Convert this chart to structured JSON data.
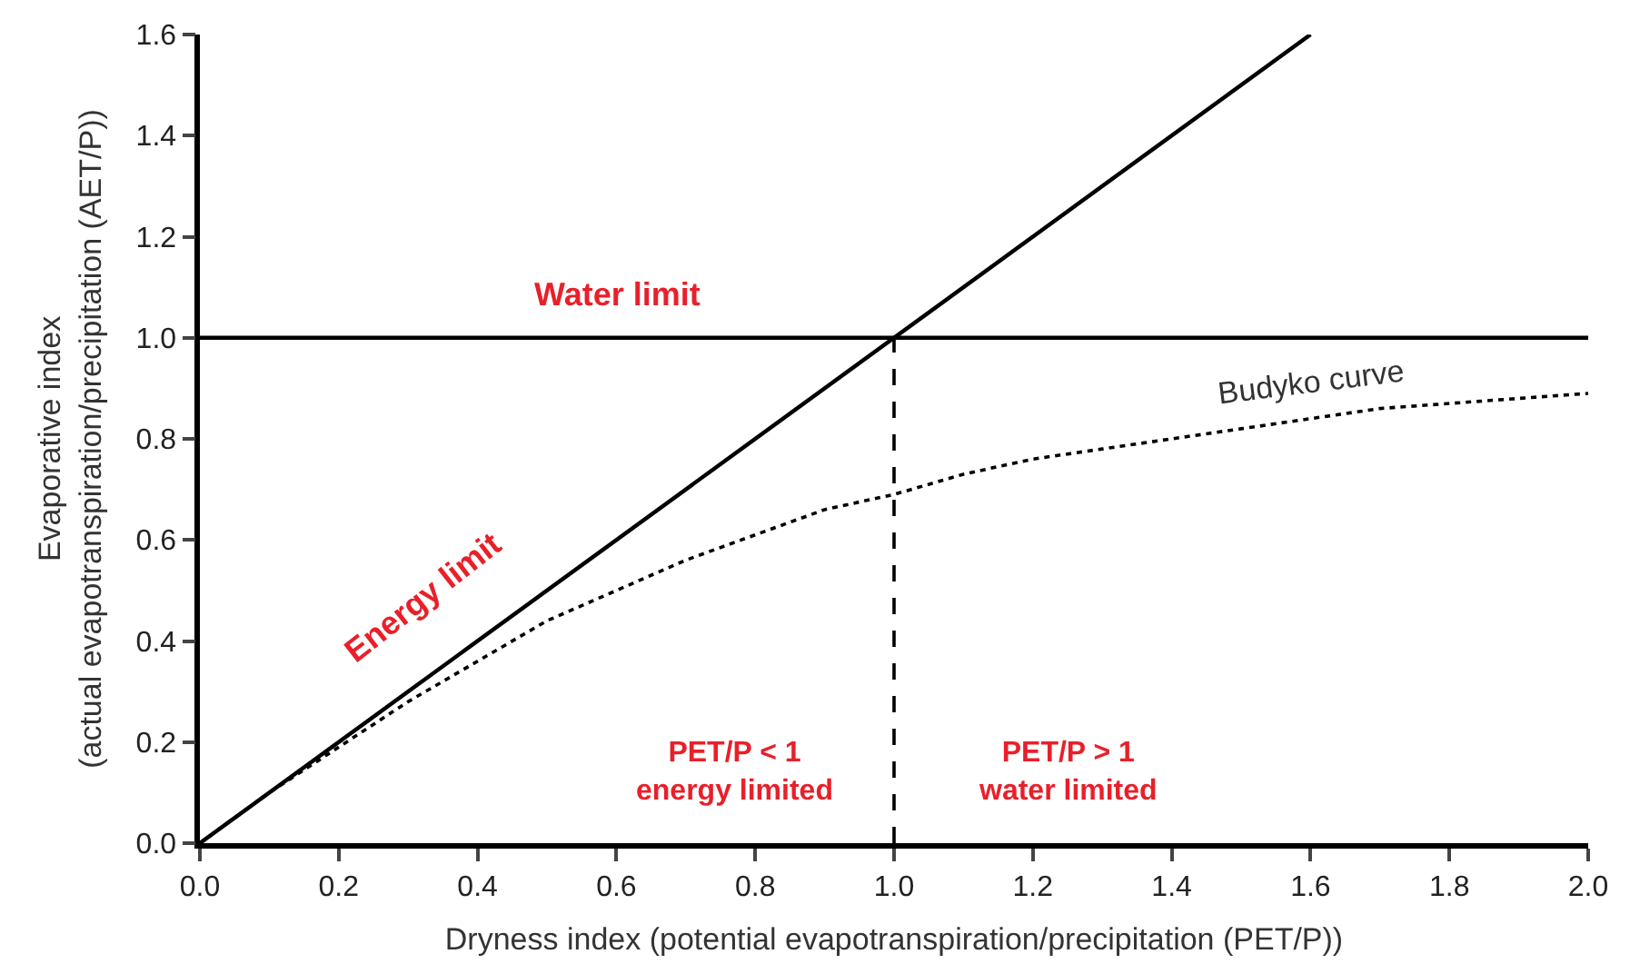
{
  "chart_data": {
    "type": "line",
    "xlabel": "Dryness index (potential evapotranspiration/precipitation (PET/P))",
    "ylabel": "Evaporative index\n(actual evapotranspiration/precipitation (AET/P))",
    "series": [
      {
        "name": "Water limit",
        "color": "#000000",
        "x": [
          0,
          2
        ],
        "values": [
          1,
          1
        ],
        "line_style": "solid"
      },
      {
        "name": "Energy limit",
        "color": "#000000",
        "x": [
          0,
          1.6
        ],
        "values": [
          0,
          1.6
        ],
        "line_style": "solid"
      },
      {
        "name": "Budyko curve",
        "color": "#000000",
        "x": [
          0,
          0.1,
          0.2,
          0.3,
          0.4,
          0.5,
          0.6,
          0.7,
          0.8,
          0.9,
          1.0,
          1.1,
          1.2,
          1.3,
          1.4,
          1.5,
          1.6,
          1.7,
          1.8,
          1.9,
          2.0
        ],
        "values": [
          0,
          0.1,
          0.19,
          0.28,
          0.36,
          0.44,
          0.5,
          0.56,
          0.61,
          0.66,
          0.69,
          0.73,
          0.76,
          0.78,
          0.8,
          0.82,
          0.84,
          0.86,
          0.87,
          0.88,
          0.89
        ],
        "line_style": "dotted"
      },
      {
        "color": "#000000",
        "x": [
          1,
          1
        ],
        "values": [
          0,
          1
        ],
        "line_style": "dashed"
      }
    ],
    "annotations": [
      "PET/P < 1\nenergy limited",
      "PET/P > 1\nwater limited"
    ],
    "xlim": [
      0,
      2
    ],
    "xticks": [
      {
        "value": 0,
        "label": "0.0"
      },
      0.2,
      0.4,
      0.6,
      0.8,
      {
        "value": 1,
        "label": "1.0"
      },
      1.2,
      1.4,
      1.6,
      1.8,
      {
        "value": 2,
        "label": "2.0"
      }
    ],
    "ylim": [
      0,
      1.6
    ],
    "yticks": [
      {
        "value": 0,
        "label": "0.0"
      },
      0.2,
      0.4,
      0.6,
      0.8,
      {
        "value": 1,
        "label": "1.0"
      },
      1.2,
      1.4,
      1.6
    ],
    "grid": false,
    "legend": false,
    "marker": "none"
  }
}
